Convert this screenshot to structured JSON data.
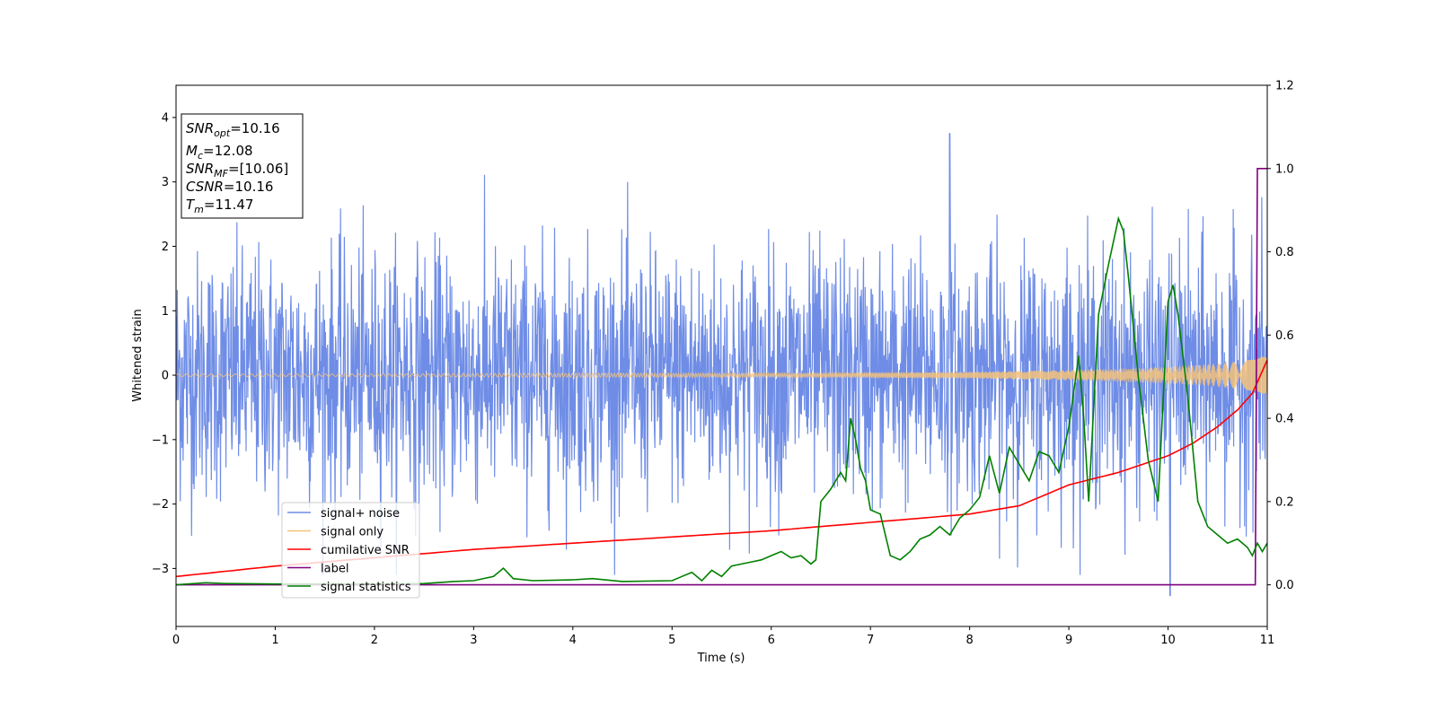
{
  "chart_data": {
    "type": "line",
    "xlabel": "Time (s)",
    "ylabel": "Whitened strain",
    "xlim": [
      0,
      11
    ],
    "ylim_left": [
      -3.9,
      4.5
    ],
    "ylim_right": [
      -0.1,
      1.2
    ],
    "x_ticks": [
      "0",
      "1",
      "2",
      "3",
      "4",
      "5",
      "6",
      "7",
      "8",
      "9",
      "10",
      "11"
    ],
    "y_left_ticks": [
      "−3",
      "−2",
      "−1",
      "0",
      "1",
      "2",
      "3",
      "4"
    ],
    "y_right_ticks": [
      "0.0",
      "0.2",
      "0.4",
      "0.6",
      "0.8",
      "1.0",
      "1.2"
    ],
    "info_box": {
      "snr_opt": {
        "sym": "SNR",
        "sub": "opt",
        "val": "=10.16"
      },
      "mc": {
        "sym": "M",
        "sub": "c",
        "val": "=12.08"
      },
      "snr_mf": {
        "sym": "SNR",
        "sub": "MF",
        "val": "=[10.06]"
      },
      "csnr": {
        "sym": "CSNR",
        "val": "=10.16"
      },
      "tm": {
        "sym": "T",
        "sub": "m",
        "val": "=11.47"
      }
    },
    "legend": {
      "placement": "lower-left",
      "entries": [
        {
          "label": "signal+ noise",
          "color": "#6f8de6"
        },
        {
          "label": "signal only",
          "color": "#f5c27a"
        },
        {
          "label": "cumilative SNR",
          "color": "#ff0000"
        },
        {
          "label": "label",
          "color": "#800080"
        },
        {
          "label": "signal statistics",
          "color": "#008000"
        }
      ]
    },
    "series": [
      {
        "name": "signal+ noise",
        "axis": "left",
        "color": "#6f8de6",
        "description_of_envelope": {
          "typical_band": [
            -2.2,
            2.3
          ],
          "max": 3.75,
          "max_at": 7.8,
          "min": -3.42,
          "min_at": 10.02
        }
      },
      {
        "name": "signal only",
        "axis": "left",
        "color": "#f5c27a",
        "envelope_x": [
          0,
          2,
          4,
          6,
          7,
          8,
          9,
          9.5,
          10,
          10.5,
          10.8,
          11
        ],
        "envelope_amp": [
          0.02,
          0.02,
          0.03,
          0.03,
          0.04,
          0.05,
          0.08,
          0.1,
          0.13,
          0.18,
          0.23,
          0.3
        ]
      },
      {
        "name": "cumilative SNR",
        "axis": "right",
        "color": "#ff0000",
        "x": [
          0,
          1,
          2,
          3,
          4,
          5,
          6,
          7,
          7.5,
          8,
          8.5,
          9,
          9.5,
          10,
          10.25,
          10.5,
          10.7,
          10.85,
          11
        ],
        "y": [
          0.02,
          0.045,
          0.065,
          0.085,
          0.1,
          0.115,
          0.13,
          0.15,
          0.16,
          0.17,
          0.19,
          0.24,
          0.27,
          0.31,
          0.34,
          0.38,
          0.42,
          0.46,
          0.54
        ]
      },
      {
        "name": "label",
        "axis": "right",
        "color": "#800080",
        "x": [
          0,
          10.88,
          10.9,
          10.95,
          11
        ],
        "y": [
          0,
          0,
          1,
          1,
          1
        ]
      },
      {
        "name": "signal statistics",
        "axis": "right",
        "color": "#008000",
        "x": [
          0,
          0.3,
          0.5,
          1,
          2,
          2.5,
          2.8,
          3,
          3.2,
          3.3,
          3.4,
          3.6,
          4,
          4.2,
          4.5,
          5,
          5.1,
          5.2,
          5.3,
          5.4,
          5.5,
          5.6,
          5.7,
          5.8,
          5.9,
          6,
          6.1,
          6.2,
          6.3,
          6.4,
          6.45,
          6.5,
          6.6,
          6.7,
          6.75,
          6.8,
          6.85,
          6.9,
          6.95,
          7,
          7.1,
          7.2,
          7.3,
          7.4,
          7.5,
          7.6,
          7.7,
          7.8,
          7.9,
          8,
          8.1,
          8.2,
          8.3,
          8.4,
          8.5,
          8.6,
          8.7,
          8.8,
          8.9,
          9,
          9.1,
          9.15,
          9.2,
          9.3,
          9.4,
          9.5,
          9.55,
          9.6,
          9.7,
          9.8,
          9.9,
          10,
          10.05,
          10.1,
          10.2,
          10.3,
          10.4,
          10.5,
          10.6,
          10.7,
          10.8,
          10.85,
          10.9,
          10.95,
          11
        ],
        "y": [
          0,
          0.005,
          0.003,
          0.002,
          0.002,
          0.003,
          0.008,
          0.01,
          0.02,
          0.04,
          0.015,
          0.01,
          0.012,
          0.015,
          0.008,
          0.01,
          0.02,
          0.03,
          0.01,
          0.035,
          0.02,
          0.045,
          0.05,
          0.055,
          0.06,
          0.07,
          0.08,
          0.065,
          0.07,
          0.05,
          0.06,
          0.2,
          0.23,
          0.27,
          0.25,
          0.4,
          0.35,
          0.28,
          0.25,
          0.18,
          0.17,
          0.07,
          0.06,
          0.08,
          0.11,
          0.12,
          0.14,
          0.12,
          0.16,
          0.18,
          0.21,
          0.31,
          0.22,
          0.33,
          0.29,
          0.25,
          0.32,
          0.31,
          0.27,
          0.38,
          0.55,
          0.4,
          0.2,
          0.65,
          0.77,
          0.88,
          0.85,
          0.74,
          0.5,
          0.3,
          0.2,
          0.68,
          0.72,
          0.65,
          0.45,
          0.2,
          0.14,
          0.12,
          0.1,
          0.11,
          0.09,
          0.07,
          0.1,
          0.08,
          0.1
        ]
      }
    ]
  }
}
